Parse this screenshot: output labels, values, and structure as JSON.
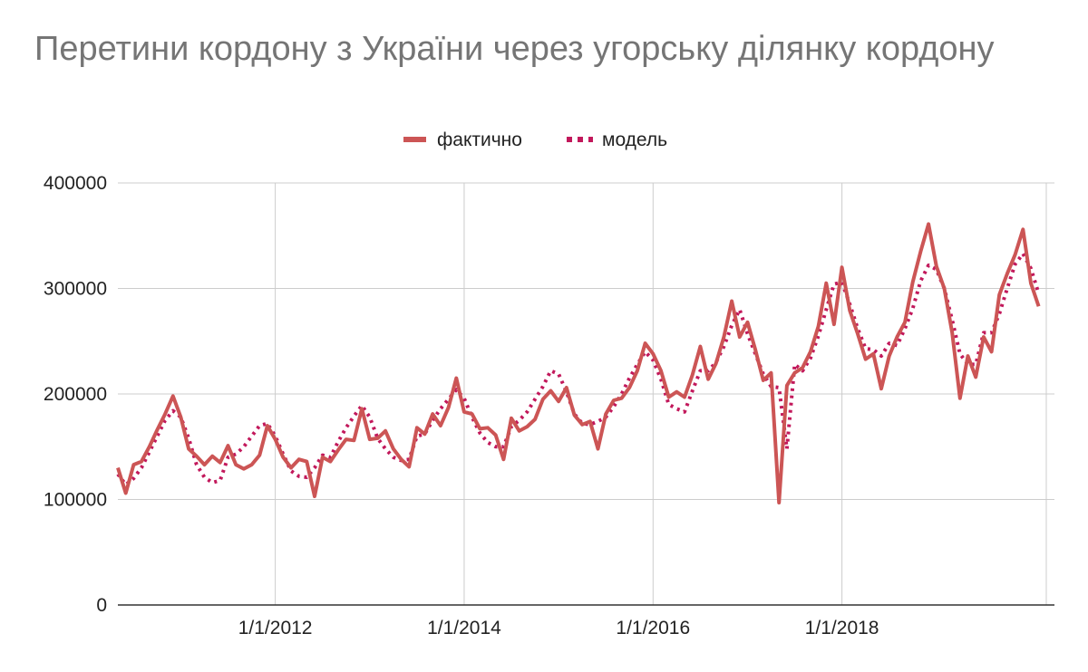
{
  "chart_data": {
    "type": "line",
    "title": "Перетини кордону з України через  угорську ділянку кордону",
    "xlabel": "",
    "ylabel": "",
    "x_start": "2010-05",
    "x_interval": "month",
    "xlim": [
      "2010-05",
      "2020-04"
    ],
    "ylim": [
      0,
      400000
    ],
    "y_ticks": [
      "0",
      "100000",
      "200000",
      "300000",
      "400000"
    ],
    "x_ticks": [
      {
        "date": "2012-01",
        "label": "1/1/2012"
      },
      {
        "date": "2014-01",
        "label": "1/1/2014"
      },
      {
        "date": "2016-01",
        "label": "1/1/2016"
      },
      {
        "date": "2018-01",
        "label": "1/1/2018"
      }
    ],
    "grid": true,
    "legend_position": "top-center",
    "series": [
      {
        "name": "фактично",
        "style": "solid",
        "color": "#cc5555",
        "values": [
          130000,
          106000,
          133000,
          136000,
          150000,
          166000,
          181000,
          198000,
          178000,
          148000,
          141000,
          133000,
          141000,
          135000,
          151000,
          133000,
          129000,
          133000,
          142000,
          170000,
          157000,
          140000,
          130000,
          138000,
          136000,
          103000,
          140000,
          136000,
          147000,
          157000,
          156000,
          186000,
          157000,
          158000,
          165000,
          148000,
          138000,
          131000,
          168000,
          162000,
          181000,
          170000,
          187000,
          215000,
          183000,
          181000,
          167000,
          168000,
          161000,
          138000,
          177000,
          165000,
          169000,
          176000,
          195000,
          203000,
          193000,
          206000,
          180000,
          171000,
          174000,
          148000,
          181000,
          194000,
          196000,
          206000,
          222000,
          248000,
          238000,
          222000,
          197000,
          202000,
          197000,
          218000,
          245000,
          214000,
          229000,
          254000,
          288000,
          254000,
          268000,
          242000,
          213000,
          220000,
          97000,
          208000,
          220000,
          225000,
          240000,
          264000,
          305000,
          266000,
          320000,
          279000,
          257000,
          233000,
          238000,
          205000,
          236000,
          254000,
          268000,
          306000,
          335000,
          361000,
          321000,
          300000,
          258000,
          196000,
          236000,
          216000,
          254000,
          240000,
          294000,
          314000,
          332000,
          356000,
          305000,
          283000
        ]
      },
      {
        "name": "модель",
        "style": "dotted",
        "color": "#c2185b",
        "values": [
          124000,
          114000,
          120000,
          130000,
          145000,
          160000,
          175000,
          184000,
          178000,
          158000,
          133000,
          121000,
          116000,
          118000,
          140000,
          143000,
          150000,
          160000,
          170000,
          172000,
          160000,
          143000,
          127000,
          122000,
          121000,
          130000,
          142000,
          140000,
          155000,
          168000,
          179000,
          189000,
          178000,
          158000,
          148000,
          140000,
          137000,
          138000,
          160000,
          162000,
          175000,
          186000,
          195000,
          204000,
          196000,
          178000,
          163000,
          154000,
          150000,
          150000,
          169000,
          175000,
          183000,
          195000,
          207000,
          222000,
          219000,
          202000,
          181000,
          172000,
          171000,
          174000,
          178000,
          188000,
          200000,
          215000,
          228000,
          240000,
          232000,
          214000,
          190000,
          186000,
          183000,
          203000,
          222000,
          222000,
          230000,
          245000,
          265000,
          280000,
          257000,
          238000,
          219000,
          207000,
          206000,
          148000,
          228000,
          222000,
          234000,
          255000,
          280000,
          304000,
          306000,
          285000,
          262000,
          243000,
          242000,
          236000,
          248000,
          246000,
          262000,
          281000,
          307000,
          322000,
          318000,
          300000,
          270000,
          238000,
          228000,
          228000,
          258000,
          258000,
          276000,
          300000,
          323000,
          333000,
          319000,
          295000
        ]
      }
    ]
  }
}
